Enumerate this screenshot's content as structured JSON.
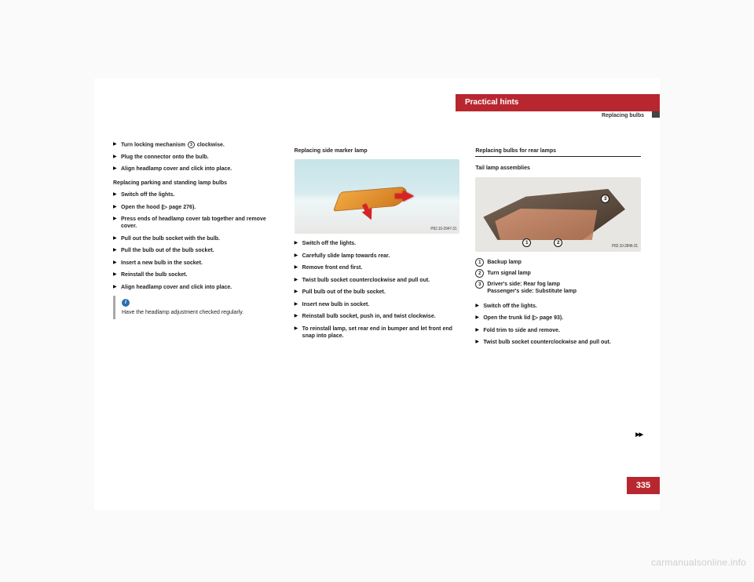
{
  "header": {
    "title": "Practical hints",
    "subtitle": "Replacing bulbs"
  },
  "col1": {
    "items_a": [
      "Turn locking mechanism <c>3</c> clockwise.",
      "Plug the connector onto the bulb.",
      "Align headlamp cover and click into place."
    ],
    "subhead1": "Replacing parking and standing lamp bulbs",
    "items_b": [
      "Switch off the lights.",
      "Open the hood (▷ page 276).",
      "Press ends of headlamp cover tab together and remove cover.",
      "Pull out the bulb socket with the bulb.",
      "Pull the bulb out of the bulb socket.",
      "Insert a new bulb in the socket.",
      "Reinstall the bulb socket.",
      "Align headlamp cover and click into place."
    ],
    "info": "Have the headlamp adjustment checked regularly."
  },
  "col2": {
    "heading": "Replacing side marker lamp",
    "img_label": "P82.10-2947-31",
    "items": [
      "Switch off the lights.",
      "Carefully slide lamp towards rear.",
      "Remove front end first.",
      "Twist bulb socket counterclockwise and pull out.",
      "Pull bulb out of the bulb socket.",
      "Insert new bulb in socket.",
      "Reinstall bulb socket, push in, and twist clockwise.",
      "To reinstall lamp, set rear end in bumper and let front end snap into place."
    ]
  },
  "col3": {
    "heading": "Replacing bulbs for rear lamps",
    "subhead": "Tail lamp assemblies",
    "img_label": "P82.10-2846-31",
    "legend": [
      {
        "n": "1",
        "t": "Backup lamp"
      },
      {
        "n": "2",
        "t": "Turn signal lamp"
      },
      {
        "n": "3",
        "t": "Driver's side: Rear fog lamp\nPassenger's side: Substitute lamp"
      }
    ],
    "items": [
      "Switch off the lights.",
      "Open the trunk lid (▷ page 93).",
      "Fold trim to side and remove.",
      "Twist bulb socket counterclockwise and pull out."
    ]
  },
  "page_number": "335",
  "watermark": "carmanualsonline.info"
}
